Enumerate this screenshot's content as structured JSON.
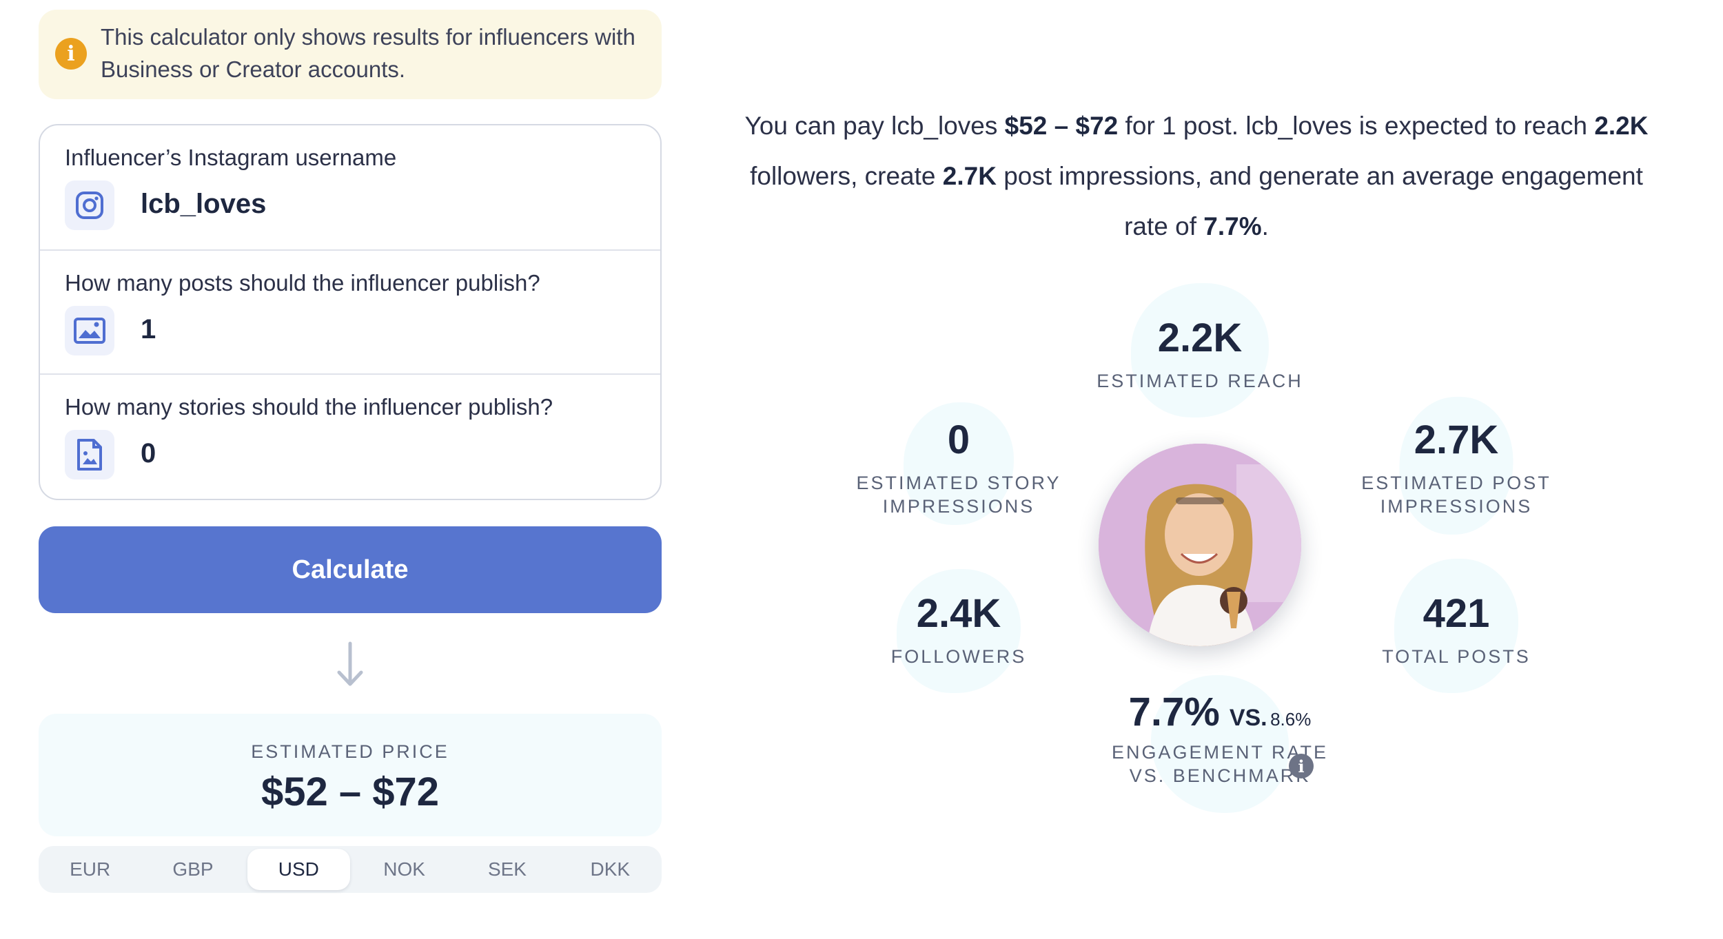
{
  "notice": {
    "text": "This calculator only shows results for influencers with Business or Creator accounts.",
    "icon": "info-icon",
    "color": "#eba11f"
  },
  "form": {
    "username": {
      "label": "Influencer’s Instagram username",
      "value": "lcb_loves",
      "icon": "instagram-icon"
    },
    "posts": {
      "label": "How many posts should the influencer publish?",
      "value": "1",
      "icon": "image-icon"
    },
    "stories": {
      "label": "How many stories should the influencer publish?",
      "value": "0",
      "icon": "story-file-icon"
    }
  },
  "calculate_label": "Calculate",
  "accent_color": "#5775cf",
  "price": {
    "label": "ESTIMATED PRICE",
    "value": "$52 – $72"
  },
  "currencies": [
    "EUR",
    "GBP",
    "USD",
    "NOK",
    "SEK",
    "DKK"
  ],
  "selected_currency": "USD",
  "summary": {
    "p1": "You can pay lcb_loves ",
    "price": "$52 – $72",
    "p2": " for 1 post. lcb_loves is expected to reach ",
    "reach": "2.2K",
    "p3": " followers, create ",
    "impressions": "2.7K",
    "p4": " post impressions, and generate an average engagement rate of ",
    "er": "7.7%",
    "p5": "."
  },
  "stats": {
    "reach": {
      "value": "2.2K",
      "label": "ESTIMATED REACH"
    },
    "story_impressions": {
      "value": "0",
      "label_1": "ESTIMATED STORY",
      "label_2": "IMPRESSIONS"
    },
    "post_impressions": {
      "value": "2.7K",
      "label_1": "ESTIMATED POST",
      "label_2": "IMPRESSIONS"
    },
    "followers": {
      "value": "2.4K",
      "label": "FOLLOWERS"
    },
    "total_posts": {
      "value": "421",
      "label": "TOTAL POSTS"
    },
    "engagement": {
      "value": "7.7%",
      "vs": "VS.",
      "benchmark": "8.6%",
      "label_1": "ENGAGEMENT RATE",
      "label_2": "VS. BENCHMARK"
    }
  }
}
